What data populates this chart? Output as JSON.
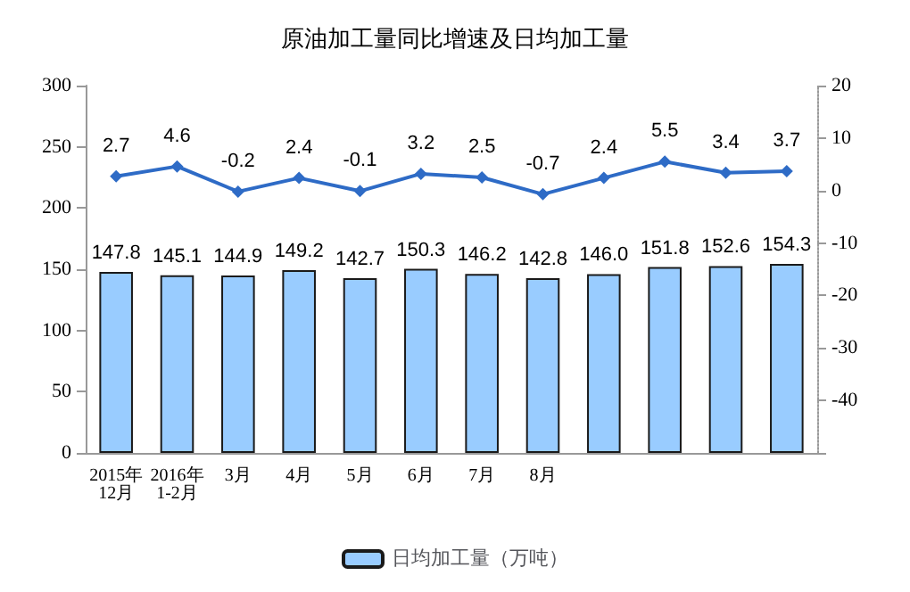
{
  "chart_data": {
    "type": "bar",
    "title": "原油加工量同比增速及日均加工量",
    "categories": [
      "2015年\n12月",
      "2016年\n1-2月",
      "3月",
      "4月",
      "5月",
      "6月",
      "7月",
      "8月",
      null,
      null,
      null,
      null
    ],
    "series": [
      {
        "name": "日均加工量（万吨）",
        "color": "#99ccff",
        "values": [
          147.8,
          145.1,
          144.9,
          149.2,
          142.7,
          150.3,
          146.2,
          142.8,
          146.0,
          151.8,
          152.6,
          154.3
        ],
        "value_labels": [
          "147.8",
          "145.1",
          "144.9",
          "149.2",
          "142.7",
          "150.3",
          "146.2",
          "142.8",
          "146.0",
          "151.8",
          "152.6",
          "154.3"
        ]
      },
      {
        "type": "line",
        "axis": "y2",
        "color": "#2e6bc6",
        "values": [
          2.7,
          4.6,
          -0.2,
          2.4,
          -0.1,
          3.2,
          2.5,
          -0.7,
          2.4,
          5.5,
          3.4,
          3.7
        ]
      }
    ],
    "ylim": [
      0,
      300
    ],
    "yticks": [
      0,
      50,
      100,
      150,
      200,
      250,
      300
    ],
    "y2lim": [
      -50,
      20
    ],
    "y2ticks": [
      {
        "value": -50,
        "label": null
      },
      -40,
      -30,
      -20,
      -10,
      0,
      10,
      20
    ],
    "data_labels": true,
    "legend": "bottom",
    "marker": "diamond",
    "grid": false
  }
}
